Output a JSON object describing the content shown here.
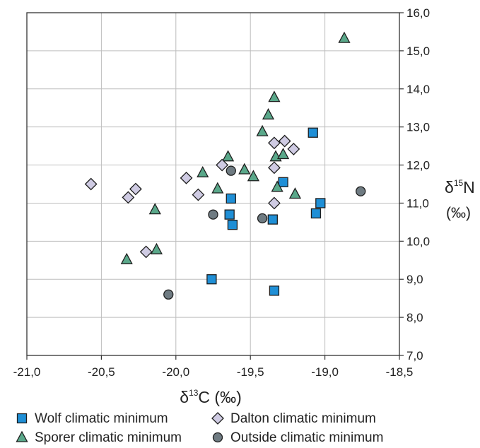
{
  "chart_data": {
    "type": "scatter",
    "xlabel": {
      "prefix": "δ",
      "sup": "13",
      "main": "C (‰)"
    },
    "ylabel": {
      "prefix": "δ",
      "sup": "15",
      "main": "N",
      "unit": "(‰)"
    },
    "xlim": [
      -21.0,
      -18.5
    ],
    "ylim": [
      7.0,
      16.0
    ],
    "x_ticks": [
      -21.0,
      -20.5,
      -20.0,
      -19.5,
      -19.0,
      -18.5
    ],
    "x_tick_labels": [
      "-21,0",
      "-20,5",
      "-20,0",
      "-19,5",
      "-19,0",
      "-18,5"
    ],
    "y_ticks": [
      7,
      8,
      9,
      10,
      11,
      12,
      13,
      14,
      15,
      16
    ],
    "y_tick_labels": [
      "7,0",
      "8,0",
      "9,0",
      "10,0",
      "11,0",
      "12,0",
      "13,0",
      "14,0",
      "15,0",
      "16,0"
    ],
    "grid": true,
    "legend_position": "bottom",
    "series": [
      {
        "name": "Wolf  climatic minimum",
        "marker": "square",
        "color": "#1f8fd6",
        "points": [
          [
            -19.63,
            11.12
          ],
          [
            -19.64,
            10.7
          ],
          [
            -19.62,
            10.43
          ],
          [
            -19.76,
            9.0
          ],
          [
            -19.35,
            10.57
          ],
          [
            -19.34,
            8.7
          ],
          [
            -19.28,
            11.55
          ],
          [
            -19.08,
            12.85
          ],
          [
            -19.06,
            10.73
          ],
          [
            -19.03,
            11.0
          ]
        ]
      },
      {
        "name": "Sporer climatic minimum",
        "marker": "triangle",
        "color": "#5aa88a",
        "points": [
          [
            -20.33,
            9.52
          ],
          [
            -20.13,
            9.78
          ],
          [
            -20.14,
            10.83
          ],
          [
            -19.82,
            11.8
          ],
          [
            -19.72,
            11.38
          ],
          [
            -19.65,
            12.22
          ],
          [
            -19.54,
            11.88
          ],
          [
            -19.48,
            11.7
          ],
          [
            -19.42,
            12.88
          ],
          [
            -19.38,
            13.32
          ],
          [
            -19.34,
            13.78
          ],
          [
            -19.33,
            12.22
          ],
          [
            -19.32,
            11.42
          ],
          [
            -19.28,
            12.28
          ],
          [
            -19.2,
            11.24
          ],
          [
            -18.87,
            15.33
          ]
        ]
      },
      {
        "name": "Dalton climatic minimum",
        "marker": "diamond",
        "color": "#cfcbe3",
        "points": [
          [
            -20.57,
            11.5
          ],
          [
            -20.32,
            11.15
          ],
          [
            -20.27,
            11.37
          ],
          [
            -20.2,
            9.72
          ],
          [
            -19.93,
            11.66
          ],
          [
            -19.85,
            11.22
          ],
          [
            -19.69,
            12.0
          ],
          [
            -19.34,
            12.58
          ],
          [
            -19.34,
            11.93
          ],
          [
            -19.34,
            11.0
          ],
          [
            -19.27,
            12.63
          ],
          [
            -19.21,
            12.42
          ]
        ]
      },
      {
        "name": "Outside climatic minimum",
        "marker": "circle",
        "color": "#6f7b82",
        "points": [
          [
            -20.05,
            8.6
          ],
          [
            -19.75,
            10.7
          ],
          [
            -19.63,
            11.85
          ],
          [
            -19.42,
            10.6
          ],
          [
            -18.76,
            11.31
          ]
        ]
      }
    ]
  },
  "legend_layout": [
    [
      "Wolf  climatic minimum",
      "Dalton climatic minimum"
    ],
    [
      "Sporer climatic minimum",
      "Outside climatic minimum"
    ]
  ]
}
